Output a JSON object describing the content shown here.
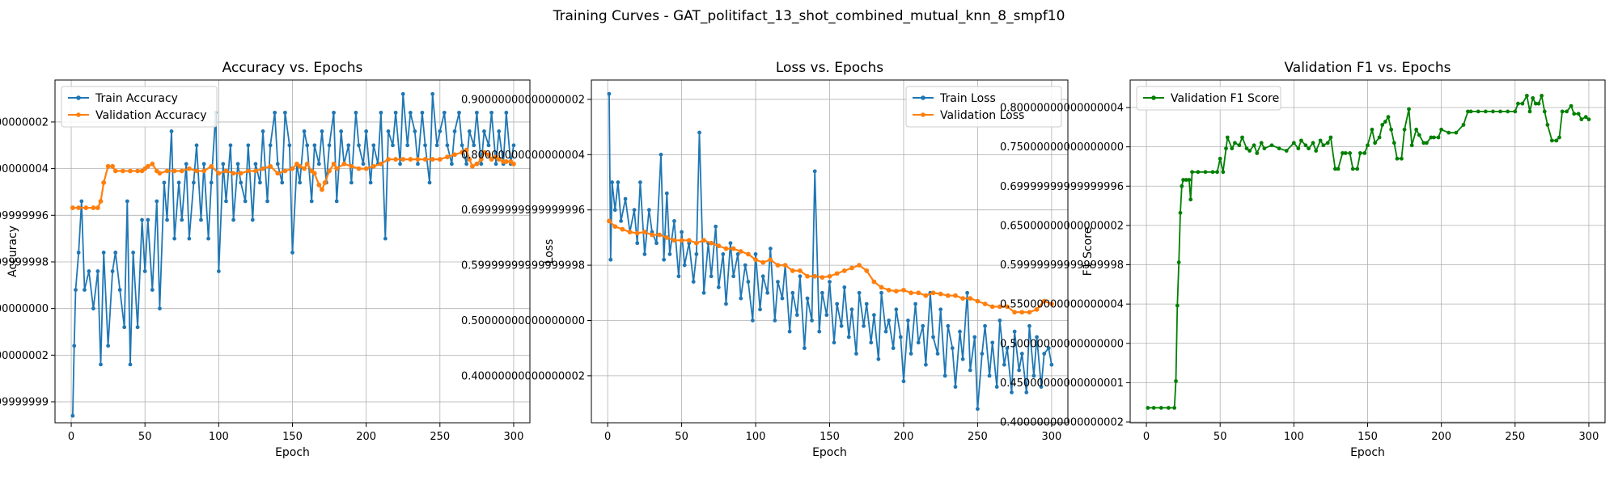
{
  "figure_title": "Training Curves - GAT_politifact_13_shot_combined_mutual_knn_8_smpf10",
  "chart_data": [
    {
      "type": "line",
      "title": "Accuracy vs. Epochs",
      "xlabel": "Epoch",
      "ylabel": "Accuracy",
      "xlim": [
        -11,
        311
      ],
      "ylim": [
        0.255,
        0.99
      ],
      "xticks": [
        0,
        50,
        100,
        150,
        200,
        250,
        300
      ],
      "yticks": [
        0.3,
        0.4,
        0.5,
        0.6,
        0.7,
        0.8,
        0.9
      ],
      "grid": true,
      "legend": "top-left",
      "series": [
        {
          "name": "Train Accuracy",
          "color": "#1f77b4",
          "x": [
            1,
            2,
            3,
            5,
            7,
            9,
            12,
            15,
            18,
            20,
            22,
            25,
            28,
            30,
            33,
            36,
            38,
            40,
            42,
            45,
            48,
            50,
            52,
            55,
            58,
            60,
            63,
            65,
            68,
            70,
            73,
            75,
            78,
            80,
            83,
            85,
            88,
            90,
            93,
            95,
            98,
            100,
            103,
            105,
            108,
            110,
            113,
            115,
            118,
            120,
            123,
            125,
            128,
            130,
            133,
            135,
            138,
            140,
            143,
            145,
            148,
            150,
            153,
            155,
            158,
            160,
            163,
            165,
            168,
            170,
            173,
            175,
            178,
            180,
            183,
            185,
            188,
            190,
            193,
            195,
            198,
            200,
            203,
            205,
            208,
            210,
            213,
            215,
            218,
            220,
            223,
            225,
            228,
            230,
            233,
            235,
            238,
            240,
            243,
            245,
            248,
            250,
            253,
            255,
            258,
            260,
            263,
            265,
            268,
            270,
            273,
            275,
            278,
            280,
            283,
            285,
            288,
            290,
            293,
            295,
            298,
            300
          ],
          "y": [
            0.27,
            0.42,
            0.54,
            0.62,
            0.73,
            0.54,
            0.58,
            0.5,
            0.58,
            0.38,
            0.62,
            0.42,
            0.58,
            0.62,
            0.54,
            0.46,
            0.73,
            0.38,
            0.62,
            0.46,
            0.69,
            0.58,
            0.69,
            0.54,
            0.73,
            0.5,
            0.77,
            0.69,
            0.88,
            0.65,
            0.77,
            0.69,
            0.81,
            0.65,
            0.77,
            0.85,
            0.69,
            0.81,
            0.65,
            0.77,
            0.92,
            0.58,
            0.81,
            0.73,
            0.85,
            0.69,
            0.81,
            0.77,
            0.73,
            0.85,
            0.69,
            0.81,
            0.77,
            0.88,
            0.73,
            0.85,
            0.92,
            0.81,
            0.77,
            0.92,
            0.85,
            0.62,
            0.81,
            0.77,
            0.88,
            0.85,
            0.73,
            0.85,
            0.81,
            0.88,
            0.77,
            0.85,
            0.92,
            0.73,
            0.88,
            0.81,
            0.85,
            0.77,
            0.92,
            0.85,
            0.81,
            0.88,
            0.77,
            0.85,
            0.81,
            0.92,
            0.65,
            0.88,
            0.85,
            0.92,
            0.81,
            0.96,
            0.85,
            0.92,
            0.88,
            0.81,
            0.92,
            0.85,
            0.77,
            0.96,
            0.85,
            0.88,
            0.92,
            0.85,
            0.81,
            0.88,
            0.92,
            0.85,
            0.81,
            0.88,
            0.85,
            0.92,
            0.81,
            0.88,
            0.85,
            0.92,
            0.81,
            0.88,
            0.81,
            0.92,
            0.81,
            0.85
          ]
        },
        {
          "name": "Validation Accuracy",
          "color": "#ff7f0e",
          "x": [
            1,
            5,
            10,
            15,
            18,
            20,
            22,
            25,
            28,
            30,
            35,
            40,
            45,
            48,
            50,
            52,
            55,
            58,
            60,
            65,
            70,
            75,
            80,
            85,
            90,
            95,
            100,
            105,
            110,
            115,
            120,
            125,
            130,
            135,
            140,
            145,
            150,
            153,
            155,
            158,
            160,
            163,
            165,
            168,
            170,
            172,
            175,
            178,
            180,
            185,
            190,
            195,
            200,
            205,
            210,
            215,
            220,
            225,
            230,
            235,
            240,
            245,
            250,
            255,
            260,
            265,
            268,
            270,
            272,
            275,
            278,
            280,
            283,
            285,
            288,
            290,
            293,
            295,
            298,
            300
          ],
          "y": [
            0.716,
            0.716,
            0.716,
            0.716,
            0.716,
            0.73,
            0.77,
            0.805,
            0.805,
            0.795,
            0.795,
            0.795,
            0.795,
            0.795,
            0.8,
            0.805,
            0.81,
            0.795,
            0.79,
            0.795,
            0.795,
            0.795,
            0.8,
            0.795,
            0.795,
            0.805,
            0.79,
            0.795,
            0.79,
            0.79,
            0.795,
            0.795,
            0.8,
            0.805,
            0.79,
            0.795,
            0.8,
            0.81,
            0.805,
            0.8,
            0.81,
            0.795,
            0.79,
            0.765,
            0.755,
            0.77,
            0.795,
            0.81,
            0.8,
            0.81,
            0.805,
            0.8,
            0.8,
            0.805,
            0.81,
            0.82,
            0.82,
            0.82,
            0.82,
            0.82,
            0.82,
            0.82,
            0.82,
            0.825,
            0.83,
            0.835,
            0.84,
            0.82,
            0.805,
            0.81,
            0.82,
            0.835,
            0.83,
            0.82,
            0.825,
            0.82,
            0.815,
            0.815,
            0.815,
            0.81
          ]
        }
      ]
    },
    {
      "type": "line",
      "title": "Loss vs. Epochs",
      "xlabel": "Epoch",
      "ylabel": "Loss",
      "xlim": [
        -11,
        311
      ],
      "ylim": [
        0.315,
        0.935
      ],
      "xticks": [
        0,
        50,
        100,
        150,
        200,
        250,
        300
      ],
      "yticks": [
        0.4,
        0.5,
        0.6,
        0.7,
        0.8,
        0.9
      ],
      "grid": true,
      "legend": "top-right",
      "series": [
        {
          "name": "Train Loss",
          "color": "#1f77b4",
          "x": [
            1,
            2,
            3,
            5,
            7,
            9,
            12,
            15,
            18,
            20,
            22,
            25,
            28,
            30,
            33,
            36,
            38,
            40,
            42,
            45,
            48,
            50,
            52,
            55,
            58,
            60,
            62,
            65,
            68,
            70,
            73,
            75,
            78,
            80,
            83,
            85,
            88,
            90,
            93,
            95,
            98,
            100,
            103,
            105,
            108,
            110,
            113,
            115,
            118,
            120,
            123,
            125,
            128,
            130,
            133,
            135,
            138,
            140,
            143,
            145,
            148,
            150,
            153,
            155,
            158,
            160,
            163,
            165,
            168,
            170,
            173,
            175,
            178,
            180,
            183,
            185,
            188,
            190,
            193,
            195,
            198,
            200,
            203,
            205,
            208,
            210,
            213,
            215,
            218,
            220,
            223,
            225,
            228,
            230,
            233,
            235,
            238,
            240,
            243,
            245,
            248,
            250,
            253,
            255,
            258,
            260,
            263,
            265,
            268,
            270,
            273,
            275,
            278,
            280,
            283,
            285,
            288,
            290,
            293,
            295,
            298,
            300
          ],
          "y": [
            0.91,
            0.61,
            0.75,
            0.7,
            0.75,
            0.68,
            0.72,
            0.66,
            0.7,
            0.64,
            0.75,
            0.62,
            0.7,
            0.66,
            0.64,
            0.8,
            0.61,
            0.73,
            0.62,
            0.68,
            0.58,
            0.66,
            0.6,
            0.64,
            0.57,
            0.62,
            0.84,
            0.55,
            0.64,
            0.58,
            0.67,
            0.56,
            0.62,
            0.53,
            0.64,
            0.58,
            0.62,
            0.54,
            0.6,
            0.57,
            0.5,
            0.62,
            0.52,
            0.58,
            0.55,
            0.63,
            0.5,
            0.57,
            0.54,
            0.6,
            0.48,
            0.55,
            0.51,
            0.58,
            0.45,
            0.54,
            0.5,
            0.77,
            0.48,
            0.55,
            0.51,
            0.57,
            0.46,
            0.53,
            0.49,
            0.56,
            0.47,
            0.52,
            0.44,
            0.55,
            0.49,
            0.53,
            0.46,
            0.51,
            0.43,
            0.55,
            0.48,
            0.5,
            0.45,
            0.52,
            0.47,
            0.39,
            0.5,
            0.44,
            0.53,
            0.46,
            0.49,
            0.42,
            0.55,
            0.47,
            0.44,
            0.52,
            0.4,
            0.49,
            0.45,
            0.38,
            0.48,
            0.43,
            0.55,
            0.41,
            0.47,
            0.34,
            0.44,
            0.49,
            0.4,
            0.46,
            0.38,
            0.5,
            0.42,
            0.45,
            0.37,
            0.48,
            0.41,
            0.44,
            0.37,
            0.49,
            0.4,
            0.47,
            0.38,
            0.44,
            0.45,
            0.42
          ]
        },
        {
          "name": "Validation Loss",
          "color": "#ff7f0e",
          "x": [
            1,
            5,
            10,
            15,
            20,
            25,
            30,
            35,
            40,
            45,
            50,
            55,
            60,
            65,
            70,
            75,
            80,
            85,
            90,
            95,
            100,
            105,
            110,
            115,
            120,
            125,
            130,
            135,
            140,
            145,
            150,
            155,
            160,
            165,
            170,
            175,
            180,
            185,
            190,
            195,
            200,
            205,
            210,
            215,
            220,
            225,
            230,
            235,
            240,
            245,
            250,
            255,
            260,
            265,
            270,
            275,
            280,
            285,
            290,
            295,
            300
          ],
          "y": [
            0.68,
            0.67,
            0.665,
            0.66,
            0.658,
            0.66,
            0.655,
            0.655,
            0.65,
            0.645,
            0.645,
            0.645,
            0.64,
            0.645,
            0.64,
            0.635,
            0.63,
            0.63,
            0.625,
            0.62,
            0.61,
            0.605,
            0.61,
            0.6,
            0.6,
            0.59,
            0.59,
            0.58,
            0.58,
            0.578,
            0.58,
            0.585,
            0.59,
            0.595,
            0.6,
            0.59,
            0.57,
            0.56,
            0.555,
            0.553,
            0.555,
            0.55,
            0.55,
            0.545,
            0.55,
            0.548,
            0.545,
            0.545,
            0.54,
            0.54,
            0.535,
            0.53,
            0.525,
            0.525,
            0.525,
            0.515,
            0.515,
            0.515,
            0.52,
            0.535,
            0.53
          ]
        }
      ]
    },
    {
      "type": "line",
      "title": "Validation F1 vs. Epochs",
      "xlabel": "Epoch",
      "ylabel": "F1 Score",
      "xlim": [
        -11,
        311
      ],
      "ylim": [
        0.399,
        0.835
      ],
      "xticks": [
        0,
        50,
        100,
        150,
        200,
        250,
        300
      ],
      "yticks": [
        0.4,
        0.45,
        0.5,
        0.55,
        0.6,
        0.65,
        0.7,
        0.75,
        0.8
      ],
      "grid": true,
      "legend": "top-left",
      "series": [
        {
          "name": "Validation F1 Score",
          "color": "#008000",
          "x": [
            1,
            5,
            10,
            15,
            19,
            20,
            21,
            22,
            23,
            24,
            25,
            27,
            29,
            30,
            31,
            35,
            40,
            45,
            48,
            50,
            52,
            54,
            55,
            58,
            60,
            63,
            65,
            68,
            70,
            73,
            75,
            78,
            80,
            85,
            90,
            95,
            100,
            103,
            105,
            108,
            110,
            113,
            115,
            118,
            120,
            123,
            125,
            128,
            130,
            133,
            135,
            138,
            140,
            143,
            145,
            148,
            150,
            153,
            155,
            158,
            160,
            162,
            164,
            166,
            168,
            170,
            173,
            175,
            178,
            180,
            183,
            185,
            188,
            190,
            193,
            195,
            198,
            200,
            205,
            210,
            215,
            218,
            220,
            225,
            230,
            235,
            240,
            245,
            250,
            252,
            255,
            258,
            260,
            262,
            264,
            266,
            268,
            270,
            272,
            275,
            278,
            280,
            282,
            285,
            288,
            290,
            293,
            295,
            298,
            300
          ],
          "y": [
            0.418,
            0.418,
            0.418,
            0.418,
            0.418,
            0.452,
            0.548,
            0.603,
            0.666,
            0.7,
            0.708,
            0.708,
            0.708,
            0.683,
            0.718,
            0.718,
            0.718,
            0.718,
            0.718,
            0.735,
            0.718,
            0.748,
            0.762,
            0.748,
            0.755,
            0.752,
            0.762,
            0.748,
            0.745,
            0.752,
            0.742,
            0.755,
            0.748,
            0.752,
            0.748,
            0.745,
            0.755,
            0.748,
            0.758,
            0.752,
            0.748,
            0.755,
            0.745,
            0.758,
            0.752,
            0.755,
            0.762,
            0.722,
            0.722,
            0.742,
            0.742,
            0.742,
            0.722,
            0.722,
            0.742,
            0.742,
            0.752,
            0.772,
            0.755,
            0.762,
            0.778,
            0.782,
            0.788,
            0.772,
            0.755,
            0.735,
            0.735,
            0.772,
            0.798,
            0.752,
            0.772,
            0.765,
            0.755,
            0.755,
            0.762,
            0.762,
            0.762,
            0.772,
            0.768,
            0.768,
            0.778,
            0.795,
            0.795,
            0.795,
            0.795,
            0.795,
            0.795,
            0.795,
            0.795,
            0.805,
            0.805,
            0.815,
            0.795,
            0.812,
            0.805,
            0.805,
            0.815,
            0.795,
            0.778,
            0.758,
            0.758,
            0.762,
            0.795,
            0.795,
            0.802,
            0.792,
            0.792,
            0.785,
            0.788,
            0.785
          ]
        }
      ]
    }
  ]
}
